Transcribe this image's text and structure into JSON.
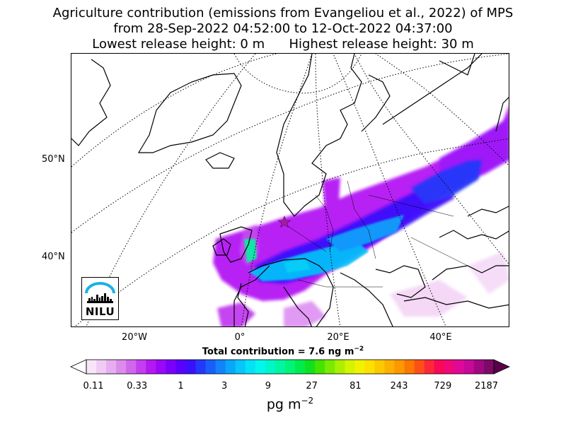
{
  "title": {
    "line1": "Agriculture contribution (emissions from Evangeliou et al., 2022) of MPS",
    "line2": "from 28-Sep-2022 04:52:00 to 12-Oct-2022 04:37:00",
    "line3": "Lowest release height: 0 m      Highest release height: 30 m"
  },
  "axes": {
    "lat_labels": [
      "50°N",
      "40°N"
    ],
    "lon_labels": [
      "20°W",
      "0°",
      "20°E",
      "40°E"
    ]
  },
  "total_contribution": "Total contribution = 7.6 ng m",
  "total_unit_exp": "−2",
  "colorbar": {
    "ticks": [
      "0.11",
      "0.33",
      "1",
      "3",
      "9",
      "27",
      "81",
      "243",
      "729",
      "2187"
    ],
    "unit": "pg m",
    "unit_exp": "−2",
    "colors": [
      "#f8e6f8",
      "#f0ccf4",
      "#e6aef0",
      "#dc8aec",
      "#d066ec",
      "#c23ef0",
      "#b418f4",
      "#9a08f8",
      "#7a00fa",
      "#5a00fc",
      "#3a10fc",
      "#2438fa",
      "#1a5efa",
      "#1282fa",
      "#0aa6fa",
      "#06c6fa",
      "#04e2f8",
      "#02f6ee",
      "#00f6c8",
      "#00f6a0",
      "#00f478",
      "#00ec4c",
      "#10e020",
      "#44e400",
      "#7aea00",
      "#aaf000",
      "#d4f400",
      "#f2f200",
      "#fce000",
      "#fcc800",
      "#fcb000",
      "#fc9800",
      "#fc7800",
      "#fc5018",
      "#fc2838",
      "#f80858",
      "#ee0878",
      "#e00898",
      "#c80898",
      "#a00880",
      "#800868"
    ],
    "under_color": "#ffffff",
    "over_color": "#5a0048"
  },
  "logo": {
    "text": "NILU",
    "arc_color": "#1ab0e8"
  },
  "map": {
    "release_marker": "star",
    "marker_color": "#a020a0"
  }
}
